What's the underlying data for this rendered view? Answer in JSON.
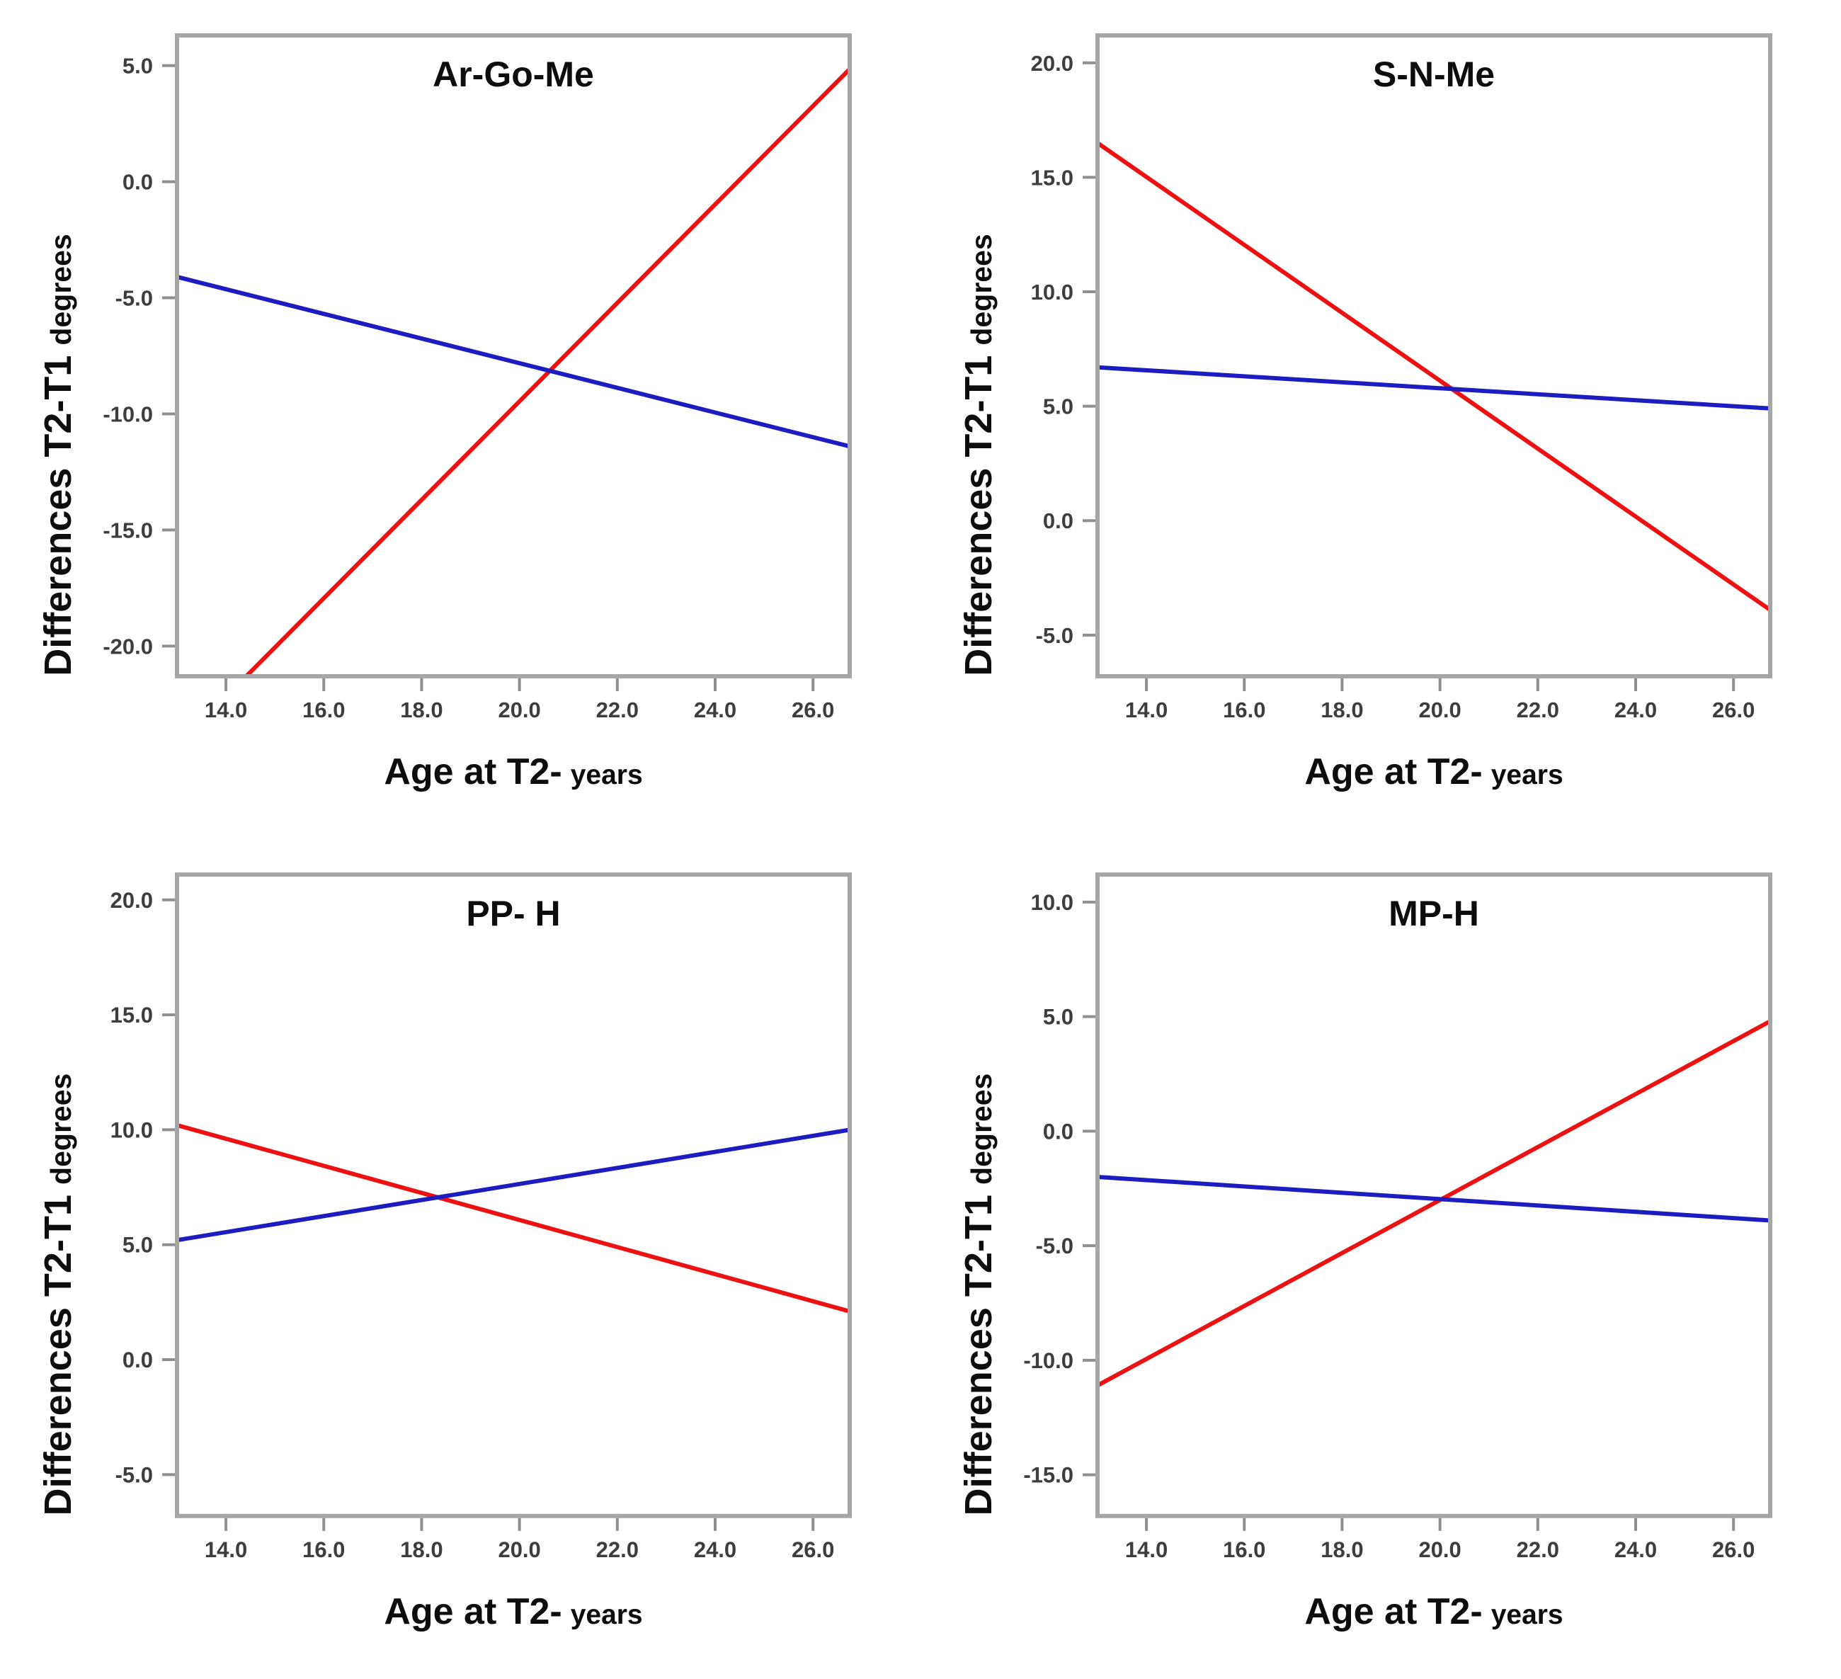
{
  "figure": {
    "background": "#ffffff",
    "frame_color": "#a6a6a6",
    "tick_color": "#8f8f8f",
    "tick_label_color": "#3d3d3d",
    "title_color": "#0d0d0d",
    "series_colors": {
      "red": "#ed1111",
      "blue": "#1c1cc0"
    }
  },
  "axis_labels": {
    "y_main": "Differences T2-T1",
    "y_suffix": "degrees",
    "x_main": "Age at T2-",
    "x_suffix": "years"
  },
  "chart_data": [
    {
      "type": "line",
      "title": "Ar-Go-Me",
      "xlabel": "Age at T2- years",
      "ylabel": "Differences T2-T1 degrees",
      "xlim": [
        13.0,
        26.75
      ],
      "ylim": [
        -21.3,
        6.3
      ],
      "x_ticks": [
        14.0,
        16.0,
        18.0,
        20.0,
        22.0,
        24.0,
        26.0
      ],
      "y_ticks": [
        5.0,
        0.0,
        -5.0,
        -10.0,
        -15.0,
        -20.0
      ],
      "grid": false,
      "legend": "none",
      "series": [
        {
          "name": "red-regression-line",
          "color": "#ed1111",
          "points": [
            [
              13.0,
              -24.3
            ],
            [
              26.75,
              4.85
            ]
          ]
        },
        {
          "name": "blue-regression-line",
          "color": "#1c1cc0",
          "points": [
            [
              13.0,
              -4.1
            ],
            [
              26.75,
              -11.4
            ]
          ]
        }
      ]
    },
    {
      "type": "line",
      "title": "S-N-Me",
      "xlabel": "Age at T2- years",
      "ylabel": "Differences T2-T1 degrees",
      "xlim": [
        13.0,
        26.75
      ],
      "ylim": [
        -6.8,
        21.2
      ],
      "x_ticks": [
        14.0,
        16.0,
        18.0,
        20.0,
        22.0,
        24.0,
        26.0
      ],
      "y_ticks": [
        20.0,
        15.0,
        10.0,
        5.0,
        0.0,
        -5.0
      ],
      "grid": false,
      "legend": "none",
      "series": [
        {
          "name": "red-regression-line",
          "color": "#ed1111",
          "points": [
            [
              13.0,
              16.5
            ],
            [
              26.75,
              -3.9
            ]
          ]
        },
        {
          "name": "blue-regression-line",
          "color": "#1c1cc0",
          "points": [
            [
              13.0,
              6.7
            ],
            [
              26.75,
              4.9
            ]
          ]
        }
      ]
    },
    {
      "type": "line",
      "title": "PP- H",
      "xlabel": "Age at T2- years",
      "ylabel": "Differences T2-T1 degrees",
      "xlim": [
        13.0,
        26.75
      ],
      "ylim": [
        -6.8,
        21.1
      ],
      "x_ticks": [
        14.0,
        16.0,
        18.0,
        20.0,
        22.0,
        24.0,
        26.0
      ],
      "y_ticks": [
        20.0,
        15.0,
        10.0,
        5.0,
        0.0,
        -5.0
      ],
      "grid": false,
      "legend": "none",
      "series": [
        {
          "name": "red-regression-line",
          "color": "#ed1111",
          "points": [
            [
              13.0,
              10.2
            ],
            [
              26.75,
              2.1
            ]
          ]
        },
        {
          "name": "blue-regression-line",
          "color": "#1c1cc0",
          "points": [
            [
              13.0,
              5.2
            ],
            [
              26.75,
              10.0
            ]
          ]
        }
      ]
    },
    {
      "type": "line",
      "title": "MP-H",
      "xlabel": "Age at T2- years",
      "ylabel": "Differences T2-T1 degrees",
      "xlim": [
        13.0,
        26.75
      ],
      "ylim": [
        -16.8,
        11.2
      ],
      "x_ticks": [
        14.0,
        16.0,
        18.0,
        20.0,
        22.0,
        24.0,
        26.0
      ],
      "y_ticks": [
        10.0,
        5.0,
        0.0,
        -5.0,
        -10.0,
        -15.0
      ],
      "grid": false,
      "legend": "none",
      "series": [
        {
          "name": "red-regression-line",
          "color": "#ed1111",
          "points": [
            [
              13.0,
              -11.1
            ],
            [
              26.75,
              4.8
            ]
          ]
        },
        {
          "name": "blue-regression-line",
          "color": "#1c1cc0",
          "points": [
            [
              13.0,
              -2.0
            ],
            [
              26.75,
              -3.9
            ]
          ]
        }
      ]
    }
  ]
}
